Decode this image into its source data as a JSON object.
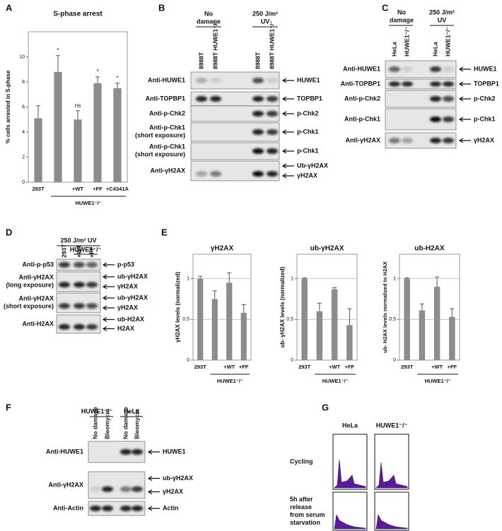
{
  "panel_labels": [
    "A",
    "B",
    "C",
    "D",
    "E",
    "F",
    "G"
  ],
  "chart_data": [
    {
      "type": "bar",
      "title": "S-phase arrest",
      "ylabel": "% cells arrested in S-phase",
      "categories": [
        "293T",
        null,
        "+WT",
        "+FF",
        "+C4341A"
      ],
      "group_label": "HUWE1⁻/⁻",
      "values": [
        5.1,
        8.8,
        5.0,
        7.9,
        7.5
      ],
      "errors": [
        1.0,
        1.3,
        0.7,
        0.5,
        0.4
      ],
      "annotations": [
        null,
        "*",
        "ns",
        "*",
        "*"
      ],
      "color": "#8c8c8c",
      "ylim": [
        0,
        12
      ],
      "yticks": [
        0,
        2,
        4,
        6,
        8,
        10
      ],
      "grid": false
    },
    {
      "type": "bar",
      "title": "γH2AX",
      "ylabel": "γH2AX levels (normalized)",
      "categories": [
        "293T",
        null,
        "+WT",
        "+FF"
      ],
      "group_label": "HUWE1⁻/⁻",
      "values": [
        1.0,
        0.75,
        0.95,
        0.58
      ],
      "errors": [
        0.03,
        0.1,
        0.12,
        0.1
      ],
      "color": "#8c8c8c",
      "ylim": [
        0,
        1.3
      ],
      "yticks": [
        0,
        0.5,
        1
      ],
      "grid": true
    },
    {
      "type": "bar",
      "title": "ub-γH2AX",
      "ylabel": "ub- γH2AX levels (normalized)",
      "categories": [
        "293T",
        null,
        "+WT",
        "+FF"
      ],
      "group_label": "HUWE1⁻/⁻",
      "values": [
        1.0,
        0.6,
        0.87,
        0.43
      ],
      "errors": [
        0.01,
        0.1,
        0.02,
        0.2
      ],
      "color": "#8c8c8c",
      "ylim": [
        0,
        1.3
      ],
      "yticks": [
        0,
        0.5,
        1
      ],
      "grid": true
    },
    {
      "type": "bar",
      "title": "ub-H2AX",
      "ylabel": "ub- H2AX levels normalized to H2AX",
      "categories": [
        "293T",
        null,
        "+WT",
        "+FF"
      ],
      "group_label": "HUWE1⁻/⁻",
      "values": [
        1.0,
        0.61,
        0.9,
        0.53
      ],
      "errors": [
        0.01,
        0.08,
        0.12,
        0.1
      ],
      "color": "#8c8c8c",
      "ylim": [
        0,
        1.3
      ],
      "yticks": [
        0,
        0.5,
        1
      ],
      "grid": true
    }
  ],
  "blots": {
    "B": {
      "headers": [
        [
          "No",
          "damage"
        ],
        [
          "250 J/m²",
          "UV"
        ]
      ],
      "lanes": [
        "8988T",
        "8988T HUWE1⁻/⁻",
        "8988T",
        "8988T HUWE1⁻/⁻"
      ],
      "rows": [
        {
          "antibody": "Anti-HUWE1",
          "bands": [
            "HUWE1"
          ]
        },
        {
          "antibody": "Anti-TOPBP1",
          "bands": [
            "TOPBP1"
          ]
        },
        {
          "antibody": "Anti-p-Chk2",
          "bands": [
            "p-Chk2"
          ]
        },
        {
          "antibody": "Anti-p-Chk1",
          "note": "(short exposure)",
          "bands": [
            "p-Chk1"
          ]
        },
        {
          "antibody": "Anti-p-Chk1",
          "note": "(short exposure)",
          "bands": [
            "p-Chk1"
          ]
        },
        {
          "antibody": "Anti-γH2AX",
          "bands": [
            "Ub-γH2AX",
            "γH2AX"
          ]
        }
      ]
    },
    "C": {
      "headers": [
        [
          "No",
          "damage"
        ],
        [
          "250 J/m²",
          "UV"
        ]
      ],
      "lanes": [
        "HeLa",
        "HUWE1⁻/⁻",
        "HeLa",
        "HUWE1⁻/⁻"
      ],
      "rows": [
        {
          "antibody": "Anti-HUWE1",
          "bands": [
            "HUWE1"
          ]
        },
        {
          "antibody": "Anti-TOPBP1",
          "bands": [
            "TOPBP1"
          ]
        },
        {
          "antibody": "Anti-p-Chk2",
          "bands": [
            "p-Chk2"
          ]
        },
        {
          "antibody": "Anti-p-Chk1",
          "bands": [
            "p-Chk1"
          ]
        },
        {
          "antibody": "Anti-γH2AX",
          "bands": [
            "γH2AX"
          ]
        }
      ]
    },
    "D": {
      "headers": [
        [
          "250 J/m² UV"
        ]
      ],
      "group": "HUWE1⁻/⁻",
      "lanes": [
        "293T",
        "+WT",
        "+FF"
      ],
      "rows": [
        {
          "antibody": "Anti-p-p53",
          "bands": [
            "p-p53"
          ]
        },
        {
          "antibody": "Anti-γH2AX",
          "note": "(long exposure)",
          "bands": [
            "ub-γH2AX",
            "γH2AX"
          ]
        },
        {
          "antibody": "Anti-γH2AX",
          "note": "(short exposure)",
          "bands": [
            "ub-γH2AX",
            "γH2AX"
          ]
        },
        {
          "antibody": "Anti-H2AX",
          "bands": [
            "ub-H2AX",
            "H2AX"
          ]
        }
      ]
    },
    "F": {
      "headers": [
        [
          "HUWE1⁻/⁻"
        ],
        [
          "HeLa"
        ]
      ],
      "lanes": [
        "No damage",
        "Bleomycin",
        "No damage",
        "Bleomycin"
      ],
      "rows": [
        {
          "antibody": "Anti-HUWE1",
          "bands": [
            "HUWE1"
          ]
        },
        {
          "antibody": "Anti-γH2AX",
          "bands": [
            "ub-γH2AX",
            "γH2AX"
          ]
        },
        {
          "antibody": "Anti-Actin",
          "bands": [
            "Actin"
          ]
        }
      ]
    }
  },
  "flow": {
    "columns": [
      "HeLa",
      "HUWE1⁻/⁻"
    ],
    "rows": [
      [
        "Cycling"
      ],
      [
        "5h after",
        "release",
        "from serum",
        "starvation"
      ]
    ]
  }
}
